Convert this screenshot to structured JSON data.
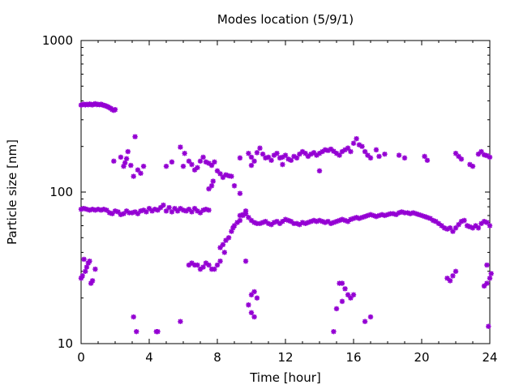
{
  "chart_data": {
    "type": "scatter",
    "title": "Modes location (5/9/1)",
    "xlabel": "Time [hour]",
    "ylabel": "Particle size [nm]",
    "xlim": [
      0,
      24
    ],
    "ylim": [
      10,
      1000
    ],
    "y_scale": "log",
    "x_ticks": [
      "0",
      "4",
      "8",
      "12",
      "16",
      "20",
      "24"
    ],
    "y_ticks": [
      "10",
      "100",
      "1000"
    ],
    "marker": "star",
    "color": "#9400d3",
    "grid": false,
    "series": [
      {
        "points": [
          [
            0.0,
            375
          ],
          [
            0.08,
            378
          ],
          [
            0.17,
            380
          ],
          [
            0.25,
            376
          ],
          [
            0.33,
            379
          ],
          [
            0.42,
            377
          ],
          [
            0.5,
            381
          ],
          [
            0.58,
            378
          ],
          [
            0.67,
            376
          ],
          [
            0.75,
            380
          ],
          [
            0.83,
            383
          ],
          [
            0.92,
            378
          ],
          [
            1.0,
            379
          ],
          [
            1.08,
            377
          ],
          [
            1.17,
            380
          ],
          [
            1.25,
            376
          ],
          [
            1.33,
            373
          ],
          [
            1.42,
            372
          ],
          [
            1.5,
            368
          ],
          [
            1.58,
            365
          ],
          [
            1.67,
            360
          ],
          [
            1.75,
            356
          ],
          [
            1.83,
            350
          ],
          [
            1.92,
            346
          ],
          [
            2.0,
            350
          ],
          [
            0.0,
            77
          ],
          [
            0.17,
            78
          ],
          [
            0.33,
            77
          ],
          [
            0.5,
            76
          ],
          [
            0.67,
            77
          ],
          [
            0.83,
            76
          ],
          [
            1.0,
            77
          ],
          [
            1.17,
            76
          ],
          [
            1.33,
            77
          ],
          [
            1.5,
            76
          ],
          [
            1.67,
            73
          ],
          [
            1.83,
            72
          ],
          [
            2.0,
            75
          ],
          [
            2.17,
            74
          ],
          [
            2.33,
            71
          ],
          [
            2.5,
            72
          ],
          [
            2.67,
            75
          ],
          [
            2.83,
            73
          ],
          [
            3.0,
            73
          ],
          [
            3.17,
            74
          ],
          [
            3.33,
            72
          ],
          [
            3.5,
            75
          ],
          [
            3.67,
            76
          ],
          [
            3.83,
            74
          ],
          [
            4.0,
            78
          ],
          [
            4.17,
            75
          ],
          [
            4.33,
            77
          ],
          [
            4.5,
            76
          ],
          [
            4.67,
            79
          ],
          [
            4.83,
            82
          ],
          [
            5.0,
            75
          ],
          [
            5.17,
            79
          ],
          [
            5.33,
            74
          ],
          [
            5.5,
            78
          ],
          [
            5.67,
            75
          ],
          [
            5.83,
            78
          ],
          [
            6.0,
            76
          ],
          [
            6.17,
            75
          ],
          [
            6.33,
            77
          ],
          [
            6.5,
            74
          ],
          [
            6.67,
            78
          ],
          [
            6.83,
            75
          ],
          [
            7.0,
            73
          ],
          [
            7.17,
            76
          ],
          [
            7.33,
            77
          ],
          [
            7.5,
            76
          ],
          [
            0.0,
            27
          ],
          [
            0.08,
            28
          ],
          [
            0.17,
            36
          ],
          [
            0.25,
            30
          ],
          [
            0.33,
            32
          ],
          [
            0.42,
            34
          ],
          [
            0.5,
            35
          ],
          [
            0.58,
            25
          ],
          [
            0.67,
            26
          ],
          [
            0.83,
            31
          ],
          [
            1.92,
            160
          ],
          [
            2.33,
            170
          ],
          [
            2.5,
            148
          ],
          [
            2.58,
            156
          ],
          [
            2.67,
            166
          ],
          [
            2.75,
            185
          ],
          [
            2.92,
            150
          ],
          [
            3.08,
            127
          ],
          [
            3.17,
            232
          ],
          [
            3.33,
            140
          ],
          [
            3.5,
            133
          ],
          [
            3.67,
            148
          ],
          [
            3.08,
            15
          ],
          [
            3.25,
            12
          ],
          [
            4.42,
            12
          ],
          [
            4.5,
            12
          ],
          [
            5.83,
            14
          ],
          [
            5.0,
            148
          ],
          [
            5.33,
            158
          ],
          [
            5.83,
            198
          ],
          [
            6.08,
            180
          ],
          [
            6.0,
            148
          ],
          [
            6.33,
            160
          ],
          [
            6.5,
            152
          ],
          [
            6.67,
            140
          ],
          [
            6.83,
            145
          ],
          [
            7.0,
            160
          ],
          [
            7.17,
            170
          ],
          [
            7.33,
            158
          ],
          [
            7.5,
            155
          ],
          [
            7.67,
            150
          ],
          [
            7.83,
            158
          ],
          [
            7.5,
            105
          ],
          [
            7.67,
            110
          ],
          [
            7.75,
            118
          ],
          [
            6.33,
            33
          ],
          [
            6.5,
            34
          ],
          [
            6.67,
            33
          ],
          [
            6.83,
            33
          ],
          [
            7.0,
            31
          ],
          [
            7.17,
            32
          ],
          [
            7.33,
            34
          ],
          [
            7.5,
            33
          ],
          [
            7.67,
            31
          ],
          [
            7.83,
            31
          ],
          [
            8.0,
            33
          ],
          [
            8.17,
            35
          ],
          [
            8.17,
            43
          ],
          [
            8.33,
            45
          ],
          [
            8.42,
            40
          ],
          [
            8.5,
            48
          ],
          [
            8.67,
            50
          ],
          [
            8.83,
            55
          ],
          [
            8.92,
            58
          ],
          [
            9.0,
            60
          ],
          [
            9.17,
            63
          ],
          [
            9.33,
            65
          ],
          [
            9.5,
            70
          ],
          [
            9.67,
            72
          ],
          [
            9.67,
            35
          ],
          [
            8.0,
            138
          ],
          [
            8.17,
            132
          ],
          [
            8.33,
            125
          ],
          [
            8.5,
            130
          ],
          [
            8.67,
            128
          ],
          [
            8.83,
            127
          ],
          [
            9.0,
            110
          ],
          [
            9.33,
            98
          ],
          [
            9.33,
            70
          ],
          [
            9.5,
            71
          ],
          [
            9.67,
            75
          ],
          [
            9.83,
            68
          ],
          [
            10.0,
            65
          ],
          [
            10.17,
            63
          ],
          [
            10.33,
            62
          ],
          [
            10.5,
            62
          ],
          [
            10.67,
            63
          ],
          [
            10.83,
            64
          ],
          [
            11.0,
            62
          ],
          [
            11.17,
            61
          ],
          [
            11.33,
            63
          ],
          [
            11.5,
            64
          ],
          [
            11.67,
            62
          ],
          [
            11.83,
            64
          ],
          [
            12.0,
            66
          ],
          [
            12.17,
            65
          ],
          [
            12.33,
            64
          ],
          [
            12.5,
            62
          ],
          [
            12.67,
            62
          ],
          [
            12.83,
            61
          ],
          [
            13.0,
            63
          ],
          [
            13.17,
            62
          ],
          [
            13.33,
            63
          ],
          [
            13.5,
            64
          ],
          [
            13.67,
            65
          ],
          [
            13.83,
            64
          ],
          [
            14.0,
            65
          ],
          [
            14.17,
            64
          ],
          [
            14.33,
            63
          ],
          [
            14.5,
            64
          ],
          [
            14.67,
            62
          ],
          [
            14.83,
            63
          ],
          [
            15.0,
            64
          ],
          [
            15.17,
            65
          ],
          [
            15.33,
            66
          ],
          [
            15.5,
            65
          ],
          [
            15.67,
            64
          ],
          [
            15.83,
            66
          ],
          [
            16.0,
            67
          ],
          [
            16.17,
            68
          ],
          [
            16.33,
            67
          ],
          [
            16.5,
            68
          ],
          [
            16.67,
            69
          ],
          [
            16.83,
            70
          ],
          [
            17.0,
            71
          ],
          [
            17.17,
            70
          ],
          [
            17.33,
            69
          ],
          [
            17.5,
            70
          ],
          [
            17.67,
            71
          ],
          [
            17.83,
            70
          ],
          [
            18.0,
            71
          ],
          [
            18.17,
            72
          ],
          [
            18.33,
            72
          ],
          [
            18.5,
            71
          ],
          [
            18.67,
            73
          ],
          [
            18.83,
            74
          ],
          [
            19.0,
            73
          ],
          [
            19.17,
            73
          ],
          [
            19.33,
            72
          ],
          [
            19.5,
            73
          ],
          [
            19.67,
            72
          ],
          [
            19.83,
            71
          ],
          [
            20.0,
            70
          ],
          [
            20.17,
            69
          ],
          [
            20.33,
            68
          ],
          [
            20.5,
            67
          ],
          [
            20.67,
            65
          ],
          [
            20.83,
            64
          ],
          [
            21.0,
            62
          ],
          [
            21.17,
            60
          ],
          [
            21.33,
            58
          ],
          [
            21.5,
            57
          ],
          [
            21.67,
            58
          ],
          [
            21.83,
            55
          ],
          [
            22.0,
            58
          ],
          [
            22.17,
            61
          ],
          [
            22.33,
            64
          ],
          [
            22.5,
            65
          ],
          [
            22.67,
            60
          ],
          [
            22.83,
            59
          ],
          [
            23.0,
            58
          ],
          [
            23.17,
            60
          ],
          [
            23.33,
            58
          ],
          [
            23.5,
            62
          ],
          [
            23.67,
            64
          ],
          [
            23.83,
            63
          ],
          [
            24.0,
            60
          ],
          [
            10.0,
            170
          ],
          [
            10.17,
            160
          ],
          [
            10.33,
            182
          ],
          [
            10.5,
            195
          ],
          [
            10.67,
            178
          ],
          [
            10.83,
            168
          ],
          [
            11.0,
            170
          ],
          [
            11.17,
            162
          ],
          [
            11.33,
            175
          ],
          [
            11.5,
            180
          ],
          [
            11.67,
            168
          ],
          [
            11.83,
            170
          ],
          [
            12.0,
            175
          ],
          [
            12.17,
            165
          ],
          [
            12.33,
            162
          ],
          [
            12.5,
            172
          ],
          [
            12.67,
            168
          ],
          [
            12.83,
            178
          ],
          [
            13.0,
            185
          ],
          [
            13.17,
            180
          ],
          [
            13.33,
            172
          ],
          [
            13.5,
            178
          ],
          [
            13.67,
            182
          ],
          [
            13.83,
            175
          ],
          [
            14.0,
            180
          ],
          [
            14.17,
            185
          ],
          [
            14.33,
            190
          ],
          [
            14.5,
            188
          ],
          [
            14.67,
            192
          ],
          [
            14.83,
            186
          ],
          [
            15.0,
            180
          ],
          [
            15.17,
            175
          ],
          [
            15.33,
            185
          ],
          [
            15.5,
            190
          ],
          [
            15.67,
            195
          ],
          [
            15.83,
            185
          ],
          [
            16.0,
            210
          ],
          [
            16.17,
            225
          ],
          [
            16.33,
            205
          ],
          [
            16.5,
            200
          ],
          [
            16.67,
            185
          ],
          [
            16.83,
            175
          ],
          [
            17.0,
            168
          ],
          [
            17.33,
            190
          ],
          [
            17.5,
            172
          ],
          [
            17.83,
            178
          ],
          [
            18.67,
            175
          ],
          [
            19.0,
            168
          ],
          [
            20.17,
            172
          ],
          [
            20.33,
            162
          ],
          [
            14.0,
            138
          ],
          [
            10.0,
            150
          ],
          [
            9.83,
            180
          ],
          [
            11.83,
            152
          ],
          [
            9.33,
            168
          ],
          [
            22.0,
            180
          ],
          [
            22.17,
            172
          ],
          [
            22.33,
            165
          ],
          [
            22.83,
            152
          ],
          [
            23.0,
            148
          ],
          [
            23.33,
            178
          ],
          [
            23.5,
            185
          ],
          [
            23.67,
            176
          ],
          [
            23.83,
            174
          ],
          [
            24.0,
            170
          ],
          [
            9.83,
            18
          ],
          [
            10.0,
            21
          ],
          [
            10.17,
            22
          ],
          [
            10.33,
            20
          ],
          [
            10.0,
            16
          ],
          [
            10.17,
            15
          ],
          [
            14.83,
            12
          ],
          [
            15.0,
            17
          ],
          [
            15.17,
            25
          ],
          [
            15.33,
            25
          ],
          [
            15.5,
            23
          ],
          [
            15.67,
            21
          ],
          [
            15.83,
            20
          ],
          [
            16.0,
            21
          ],
          [
            15.33,
            19
          ],
          [
            16.67,
            14
          ],
          [
            17.0,
            15
          ],
          [
            21.5,
            27
          ],
          [
            21.67,
            26
          ],
          [
            21.83,
            28
          ],
          [
            22.0,
            30
          ],
          [
            23.67,
            24
          ],
          [
            23.83,
            25
          ],
          [
            24.0,
            27
          ],
          [
            24.08,
            29
          ],
          [
            23.83,
            33
          ],
          [
            23.92,
            13
          ]
        ]
      }
    ]
  }
}
